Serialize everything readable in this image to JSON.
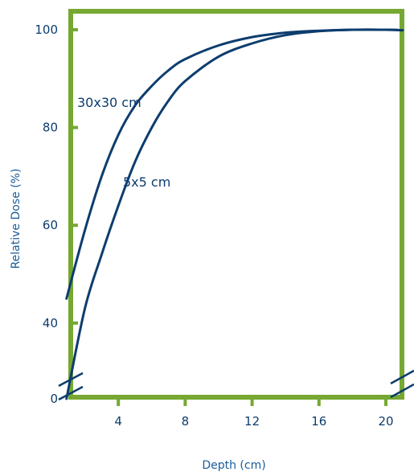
{
  "chart_data": {
    "type": "line",
    "title": "",
    "xlabel": "Depth (cm)",
    "ylabel": "Relative Dose (%)",
    "xlim": [
      0.5,
      21
    ],
    "ylim_display": [
      0,
      100
    ],
    "axis_break": "y between 0 and 40; also on right axis",
    "x_ticks": [
      4,
      8,
      12,
      16,
      20
    ],
    "x_tick_labels": [
      "4",
      "8",
      "12",
      "16",
      "20"
    ],
    "y_ticks": [
      0,
      40,
      60,
      80,
      100
    ],
    "y_tick_labels": [
      "0",
      "40",
      "60",
      "80",
      "100"
    ],
    "grid": false,
    "frame_color": "#76a832",
    "series": [
      {
        "name": "30x30 cm",
        "color": "#0d3d6e",
        "x": [
          0.9,
          2,
          3,
          4,
          5,
          6,
          7,
          8,
          10,
          12,
          14,
          16,
          18,
          20,
          21
        ],
        "y": [
          45,
          59,
          70,
          78.5,
          84.5,
          88.5,
          91.7,
          94,
          96.8,
          98.5,
          99.4,
          99.8,
          100,
          100,
          99.9
        ]
      },
      {
        "name": "5x5 cm",
        "color": "#0d3d6e",
        "x": [
          0.9,
          2,
          3,
          4,
          5,
          6,
          7,
          8,
          10,
          12,
          14,
          16,
          18,
          20,
          21
        ],
        "y": [
          32,
          43,
          54,
          64,
          73,
          80,
          85.5,
          89.5,
          94.5,
          97.2,
          98.9,
          99.7,
          100,
          100,
          99.9
        ]
      }
    ]
  }
}
